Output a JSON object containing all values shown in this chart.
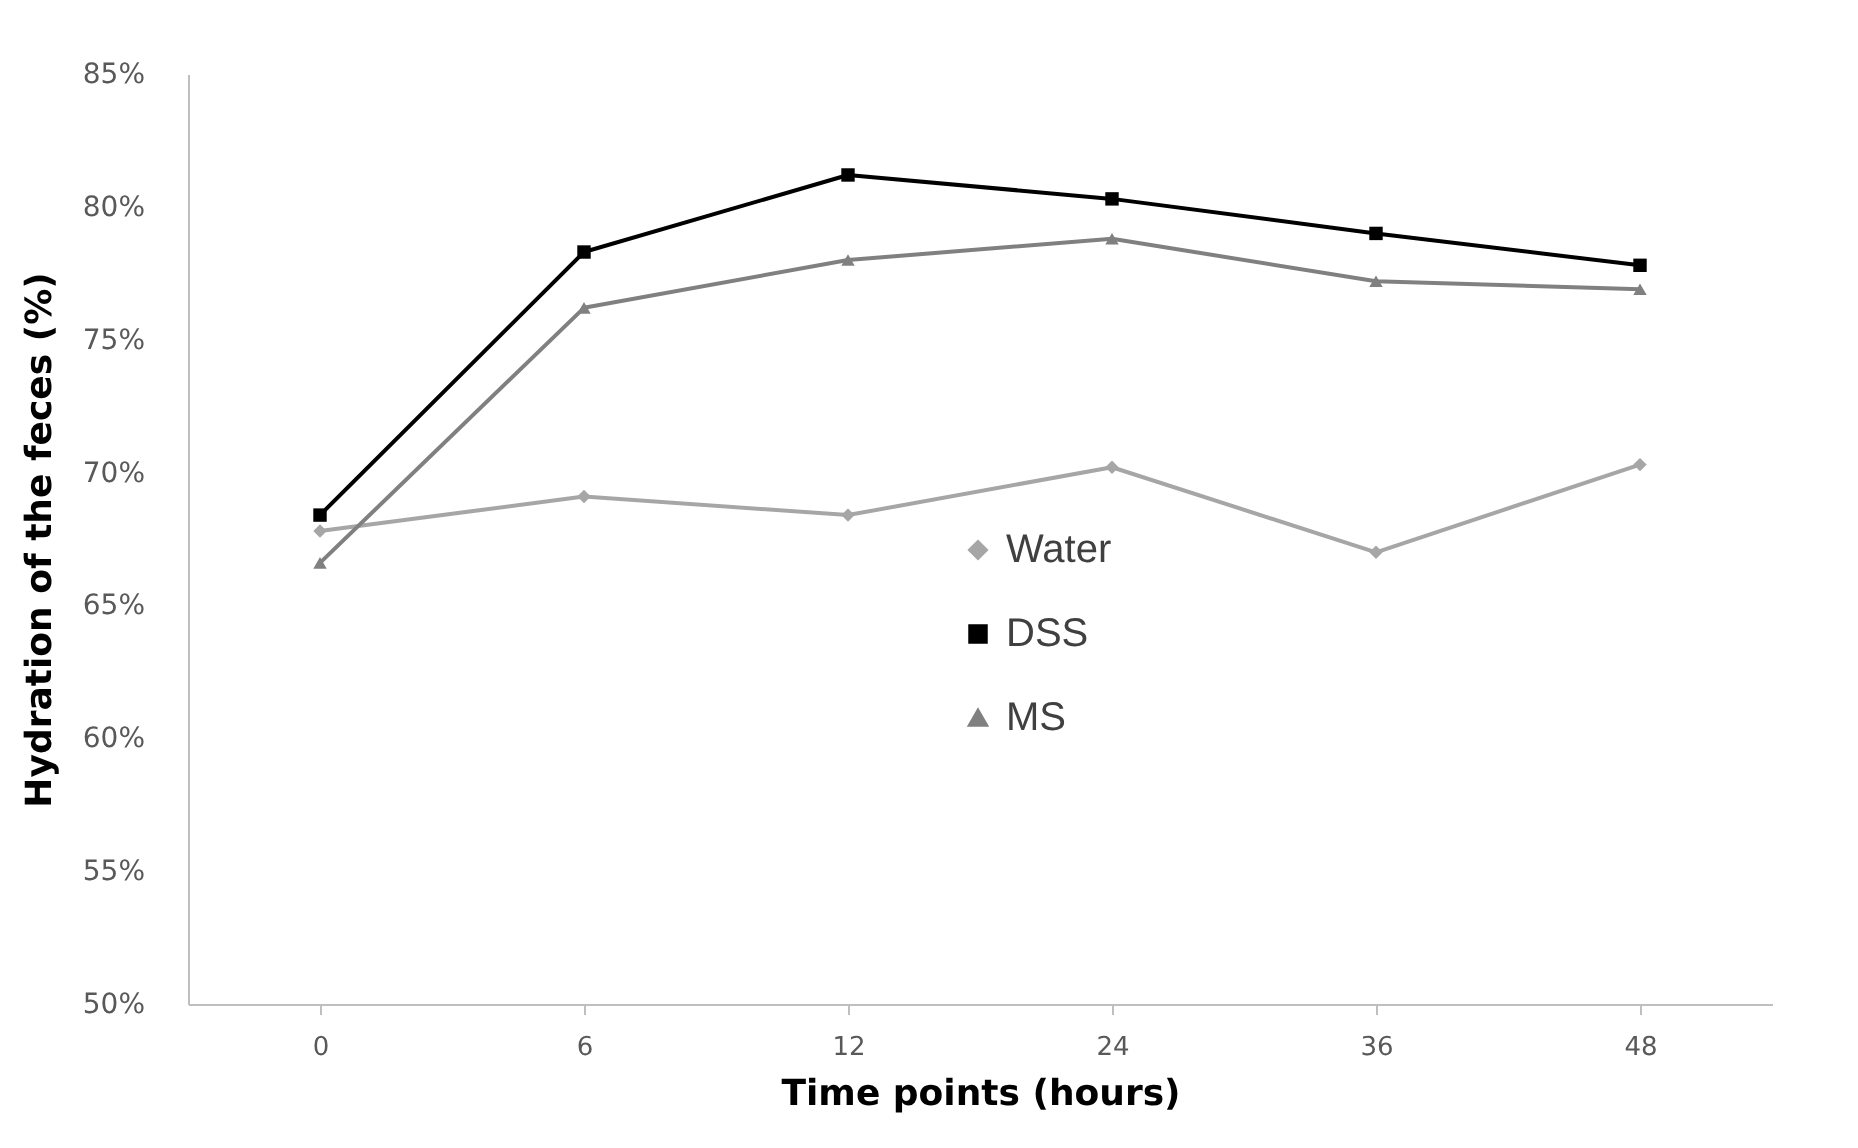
{
  "chart_data": {
    "type": "line",
    "xlabel": "Time points (hours)",
    "ylabel": "Hydration of the feces (%)",
    "categories": [
      "0",
      "6",
      "12",
      "24",
      "36",
      "48"
    ],
    "series": [
      {
        "name": "Water",
        "color": "#a6a6a6",
        "marker": "diamond",
        "values": [
          67.8,
          69.1,
          68.4,
          70.2,
          67.0,
          70.3
        ]
      },
      {
        "name": "DSS",
        "color": "#000000",
        "marker": "square",
        "values": [
          68.4,
          78.3,
          81.2,
          80.3,
          79.0,
          77.8
        ]
      },
      {
        "name": "MS",
        "color": "#808080",
        "marker": "triangle",
        "values": [
          66.6,
          76.2,
          78.0,
          78.8,
          77.2,
          76.9
        ]
      }
    ],
    "ylim": [
      50,
      85
    ],
    "yticks": [
      {
        "value": 50,
        "label": "50%"
      },
      {
        "value": 55,
        "label": "55%"
      },
      {
        "value": 60,
        "label": "60%"
      },
      {
        "value": 65,
        "label": "65%"
      },
      {
        "value": 70,
        "label": "70%"
      },
      {
        "value": 75,
        "label": "75%"
      },
      {
        "value": 80,
        "label": "80%"
      },
      {
        "value": 85,
        "label": "85%"
      }
    ],
    "grid": false,
    "legend": "bottom right",
    "line_style": "solid"
  }
}
